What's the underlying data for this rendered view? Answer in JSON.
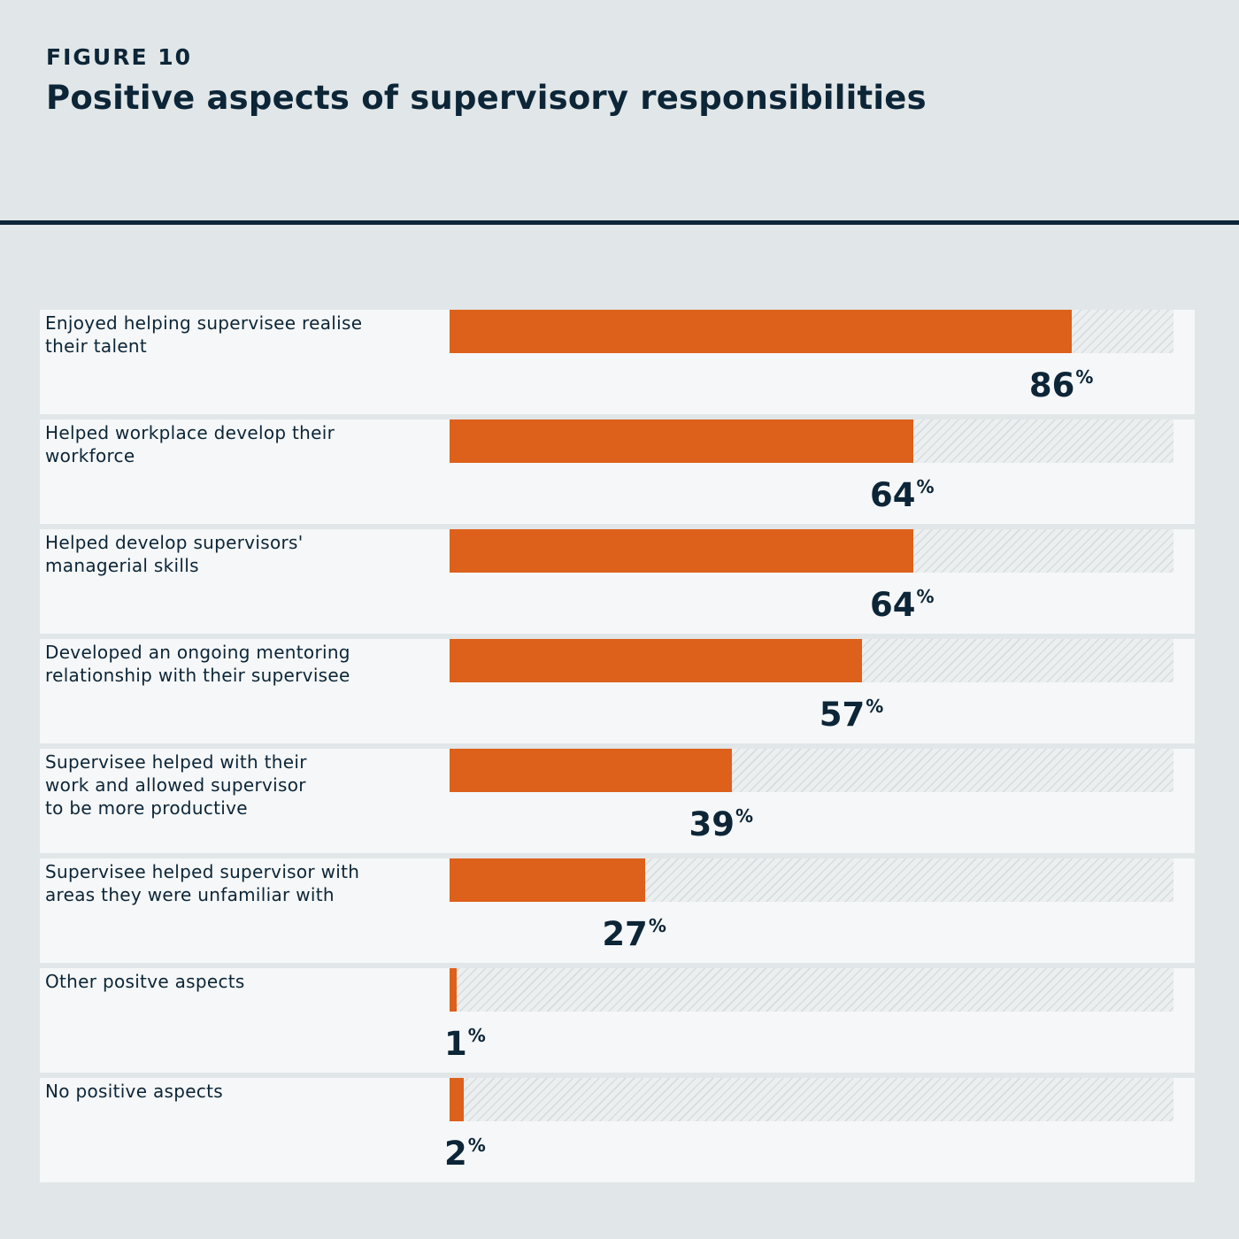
{
  "header": {
    "figure_label": "FIGURE 10",
    "title": "Positive aspects of supervisory responsibilities"
  },
  "colors": {
    "bar": "#dd601b",
    "text": "#0c2537",
    "background": "#e1e6e8",
    "row_background": "#f5f7f8"
  },
  "chart_data": {
    "type": "bar",
    "orientation": "horizontal",
    "title": "Positive aspects of supervisory responsibilities",
    "xlabel": "",
    "ylabel": "",
    "xlim": [
      0,
      100
    ],
    "unit": "%",
    "grid": false,
    "categories": [
      "Enjoyed helping supervisee realise their talent",
      "Helped workplace develop their workforce",
      "Helped develop supervisors' managerial skills",
      "Developed an ongoing mentoring relationship with their supervisee",
      "Supervisee helped with their work and allowed supervisor to be more productive",
      "Supervisee helped supervisor with areas they were unfamiliar with",
      "Other positve aspects",
      "No positive aspects"
    ],
    "values": [
      86,
      64,
      64,
      57,
      39,
      27,
      1,
      2
    ]
  }
}
